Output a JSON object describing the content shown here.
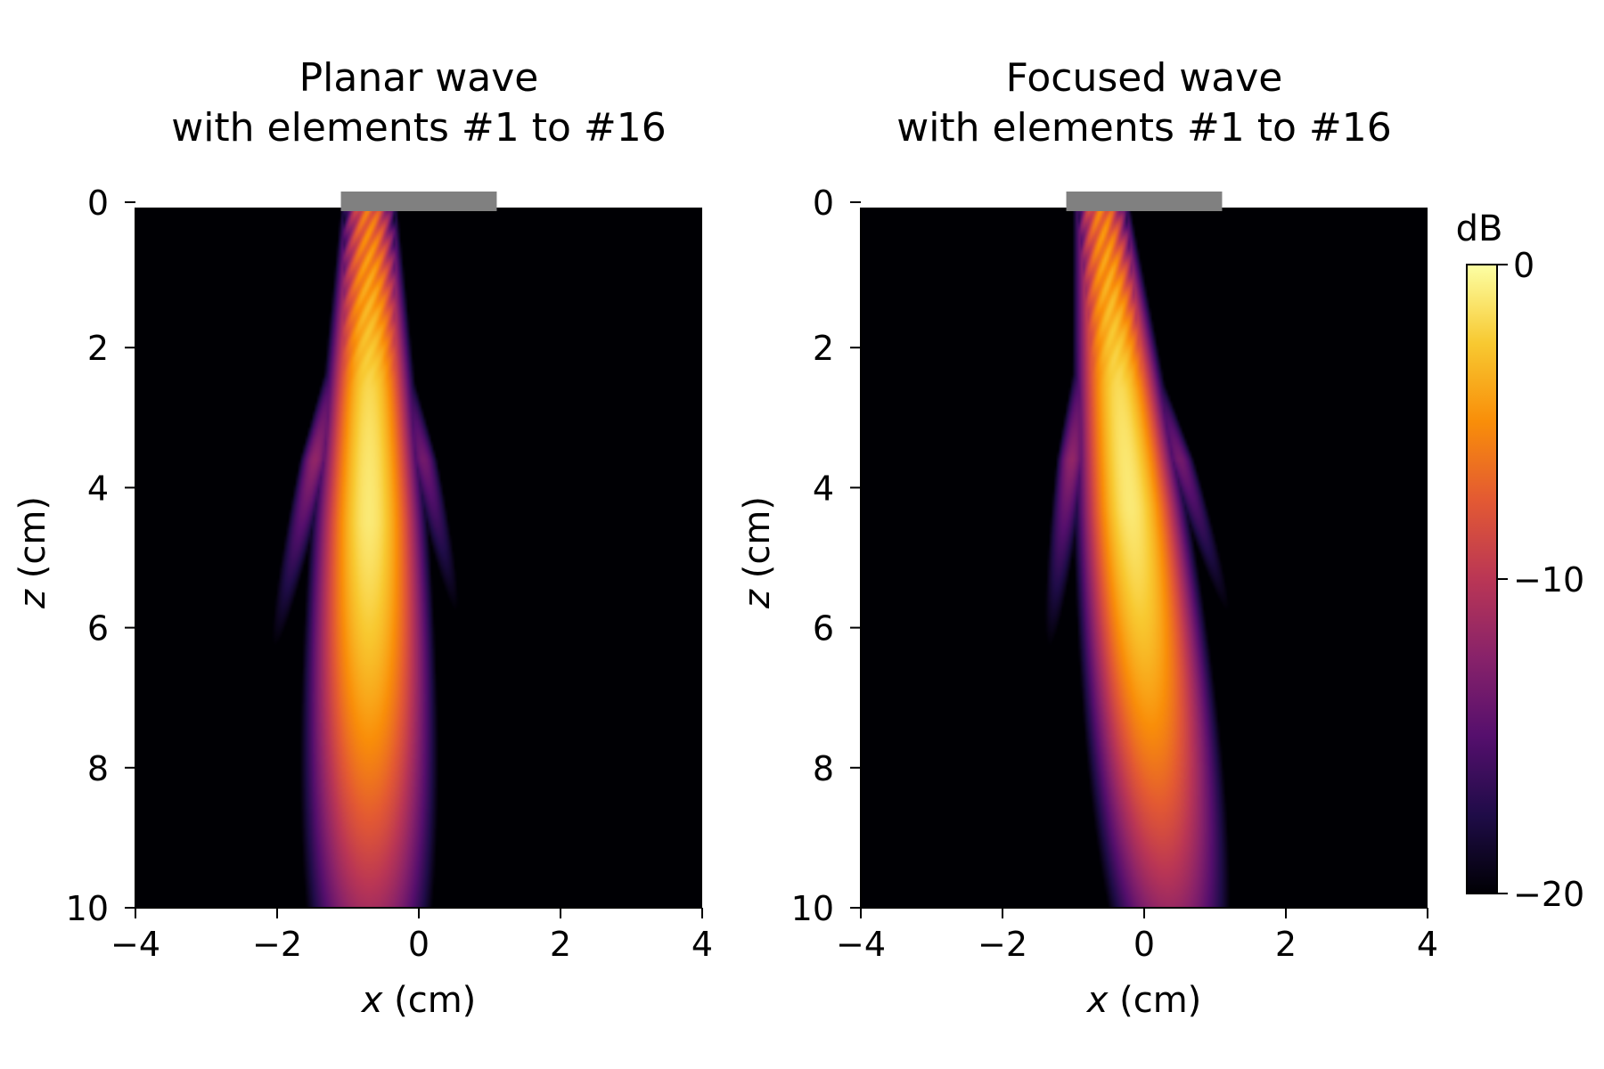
{
  "chart_data": [
    {
      "type": "heatmap",
      "title_lines": [
        "Planar wave",
        "with elements #1 to #16"
      ],
      "xlabel_var": "x",
      "xlabel_unit": " (cm)",
      "ylabel_var": "z",
      "ylabel_unit": " (cm)",
      "xlim": [
        -4,
        4
      ],
      "ylim": [
        10,
        0
      ],
      "xticks": [
        -4,
        -2,
        0,
        2,
        4
      ],
      "xtick_labels": [
        "−4",
        "−2",
        "0",
        "2",
        "4"
      ],
      "yticks": [
        0,
        2,
        4,
        6,
        8,
        10
      ],
      "ytick_labels": [
        "0",
        "2",
        "4",
        "6",
        "8",
        "10"
      ],
      "probe_x_range": [
        -1.1,
        1.1
      ],
      "probe_color": "#808080",
      "beam": {
        "center_x_at_top": -0.7,
        "center_x_at_bottom": -0.7,
        "peak_depth": 4.5,
        "peak_db": -1,
        "sidelobe_angle_deg": 12,
        "sidelobe_db": -12
      }
    },
    {
      "type": "heatmap",
      "title_lines": [
        "Focused wave",
        "with elements #1 to #16"
      ],
      "xlabel_var": "x",
      "xlabel_unit": " (cm)",
      "ylabel_var": "z",
      "ylabel_unit": " (cm)",
      "xlim": [
        -4,
        4
      ],
      "ylim": [
        10,
        0
      ],
      "xticks": [
        -4,
        -2,
        0,
        2,
        4
      ],
      "xtick_labels": [
        "−4",
        "−2",
        "0",
        "2",
        "4"
      ],
      "yticks": [
        0,
        2,
        4,
        6,
        8,
        10
      ],
      "ytick_labels": [
        "0",
        "2",
        "4",
        "6",
        "8",
        "10"
      ],
      "probe_x_range": [
        -1.1,
        1.1
      ],
      "probe_color": "#808080",
      "beam": {
        "center_x_at_top": -0.6,
        "center_x_at_bottom": 0.35,
        "peak_depth": 4.3,
        "peak_db": -1,
        "sidelobe_angle_deg": 12,
        "sidelobe_db": -12
      }
    }
  ],
  "colorbar": {
    "label": "dB",
    "range": [
      -20,
      0
    ],
    "ticks": [
      0,
      -10,
      -20
    ],
    "tick_labels": [
      "0",
      "−10",
      "−20"
    ],
    "colormap": "inferno",
    "colormap_stops": [
      "#000004",
      "#1f0c48",
      "#550f6d",
      "#88226a",
      "#ba3655",
      "#e35933",
      "#f98e09",
      "#f8c931",
      "#fcffa4"
    ]
  },
  "background_color": "#000000"
}
